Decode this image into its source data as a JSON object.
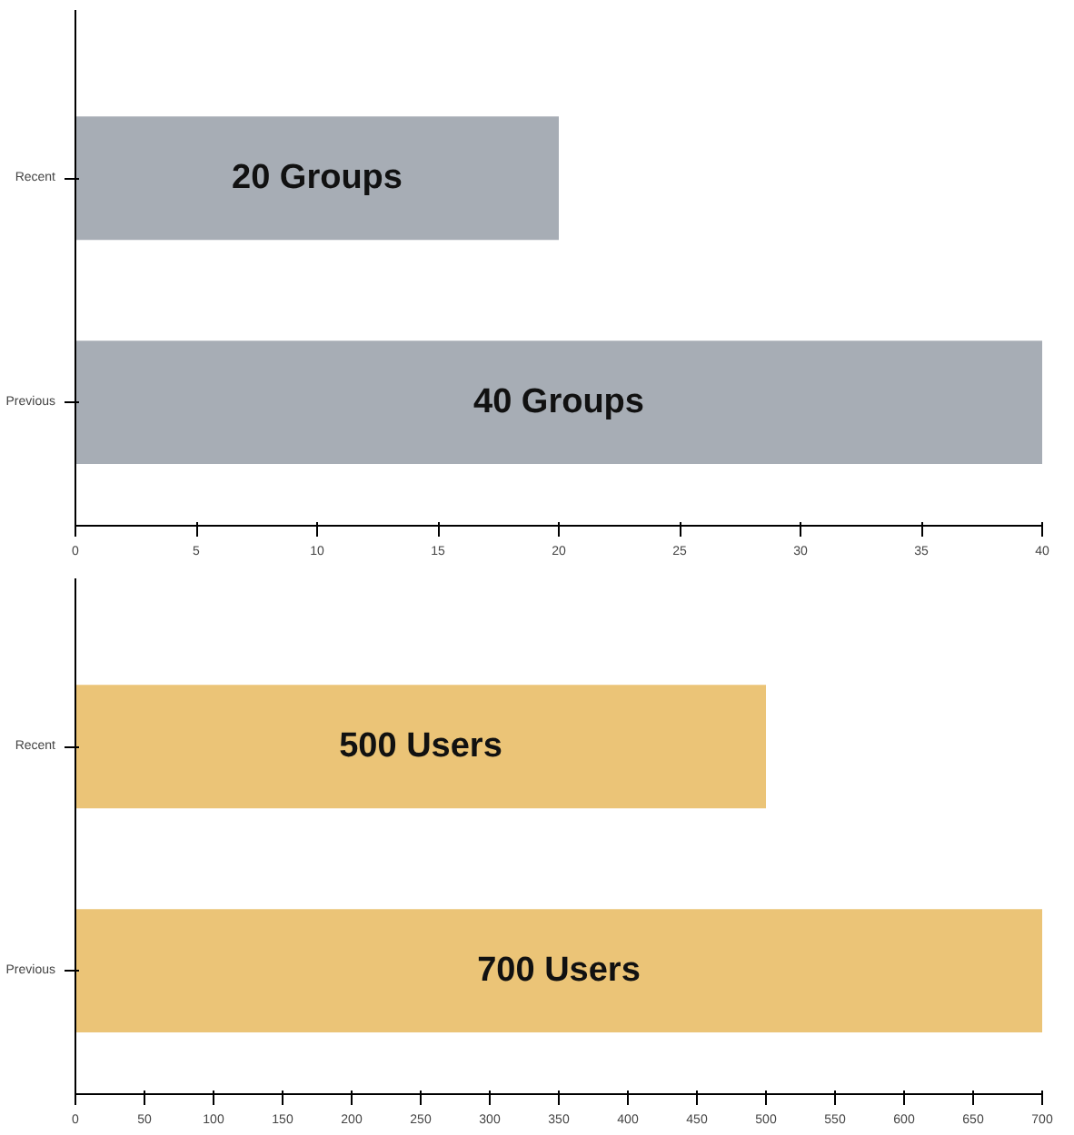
{
  "chart_data": [
    {
      "type": "bar",
      "orientation": "horizontal",
      "categories": [
        "Recent",
        "Previous"
      ],
      "values": [
        20,
        40
      ],
      "value_labels": [
        "20 Groups",
        "40 Groups"
      ],
      "color": "#a7adb5",
      "xlim": [
        0,
        40
      ],
      "xticks": [
        0,
        5,
        10,
        15,
        20,
        25,
        30,
        35,
        40
      ],
      "grid": false
    },
    {
      "type": "bar",
      "orientation": "horizontal",
      "categories": [
        "Recent",
        "Previous"
      ],
      "values": [
        500,
        700
      ],
      "value_labels": [
        "500 Users",
        "700 Users"
      ],
      "color": "#ebc477",
      "xlim": [
        0,
        700
      ],
      "xticks": [
        0,
        50,
        100,
        150,
        200,
        250,
        300,
        350,
        400,
        450,
        500,
        550,
        600,
        650,
        700
      ],
      "grid": false
    }
  ]
}
